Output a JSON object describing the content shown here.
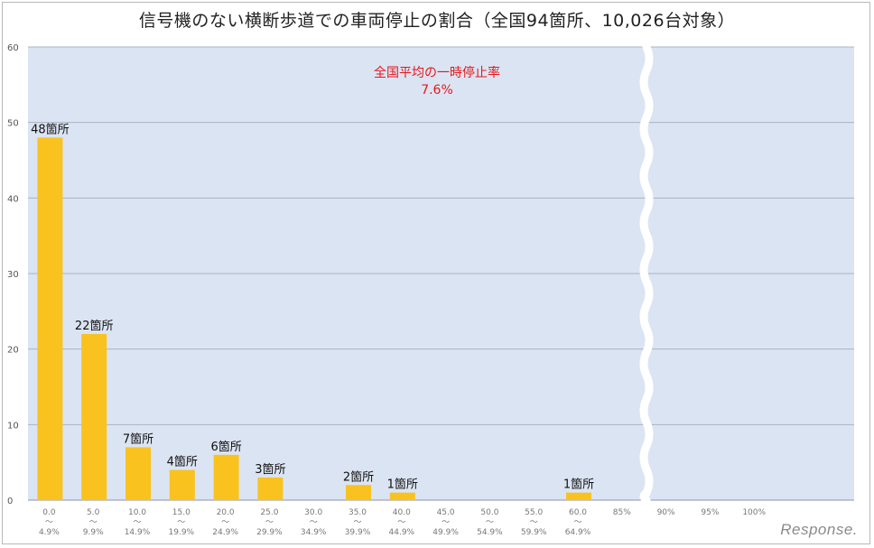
{
  "title": "信号機のない横断歩道での車両停止の割合（全国94箇所、10,026台対象）",
  "watermark": "Response.",
  "colors": {
    "plot_bg": "#dbe4f2",
    "bar": "#f9c21f",
    "grid": "#a9b3c4",
    "annotation": "#e8161b"
  },
  "chart_data": {
    "type": "bar",
    "title": "信号機のない横断歩道での車両停止の割合（全国94箇所、10,026台対象）",
    "xlabel": "",
    "ylabel": "",
    "ylim": [
      0,
      60
    ],
    "yticks": [
      0,
      10,
      20,
      30,
      40,
      50,
      60
    ],
    "grid": true,
    "axis_break_after": "60.0〜64.9%",
    "categories": [
      "0.0〜4.9%",
      "5.0〜9.9%",
      "10.0〜14.9%",
      "15.0〜19.9%",
      "20.0〜24.9%",
      "25.0〜29.9%",
      "30.0〜34.9%",
      "35.0〜39.9%",
      "40.0〜44.9%",
      "45.0〜49.9%",
      "50.0〜54.9%",
      "55.0〜59.9%",
      "60.0〜64.9%",
      "85%",
      "90%",
      "95%",
      "100%"
    ],
    "tick_lines": [
      [
        "0.0",
        "〜",
        "4.9%"
      ],
      [
        "5.0",
        "〜",
        "9.9%"
      ],
      [
        "10.0",
        "〜",
        "14.9%"
      ],
      [
        "15.0",
        "〜",
        "19.9%"
      ],
      [
        "20.0",
        "〜",
        "24.9%"
      ],
      [
        "25.0",
        "〜",
        "29.9%"
      ],
      [
        "30.0",
        "〜",
        "34.9%"
      ],
      [
        "35.0",
        "〜",
        "39.9%"
      ],
      [
        "40.0",
        "〜",
        "44.9%"
      ],
      [
        "45.0",
        "〜",
        "49.9%"
      ],
      [
        "50.0",
        "〜",
        "54.9%"
      ],
      [
        "55.0",
        "〜",
        "59.9%"
      ],
      [
        "60.0",
        "〜",
        "64.9%"
      ],
      [
        "85%"
      ],
      [
        "90%"
      ],
      [
        "95%"
      ],
      [
        "100%"
      ]
    ],
    "values": [
      48,
      22,
      7,
      4,
      6,
      3,
      0,
      2,
      1,
      0,
      0,
      0,
      1,
      0,
      0,
      0,
      0
    ],
    "data_labels": [
      "48箇所",
      "22箇所",
      "7箇所",
      "4箇所",
      "6箇所",
      "3箇所",
      "",
      "2箇所",
      "1箇所",
      "",
      "",
      "",
      "1箇所",
      "",
      "",
      "",
      ""
    ],
    "annotations": [
      {
        "text": "全国平均の一時停止率",
        "value": "7.6%"
      }
    ]
  }
}
